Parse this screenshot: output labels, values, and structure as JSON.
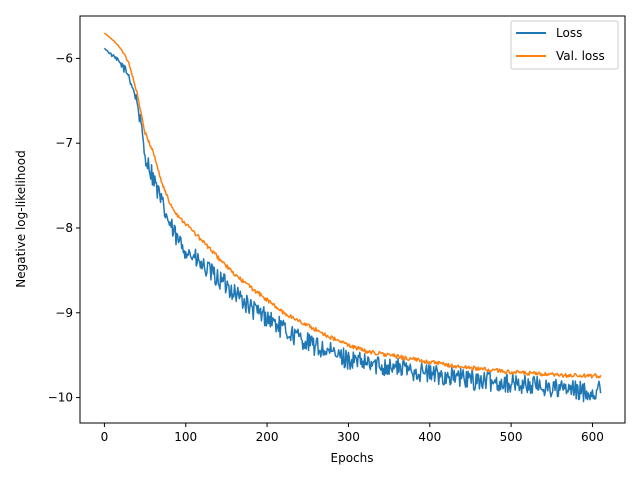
{
  "chart_data": {
    "type": "line",
    "title": "",
    "xlabel": "Epochs",
    "ylabel": "Negative log-likelihood",
    "xlim": [
      -30,
      640
    ],
    "ylim": [
      -10.3,
      -5.5
    ],
    "x_ticks": [
      0,
      100,
      200,
      300,
      400,
      500,
      600
    ],
    "x_tick_labels": [
      "0",
      "100",
      "200",
      "300",
      "400",
      "500",
      "600"
    ],
    "y_ticks": [
      -10,
      -9,
      -8,
      -7,
      -6
    ],
    "y_tick_labels": [
      "−10",
      "−9",
      "−8",
      "−7",
      "−6"
    ],
    "grid": false,
    "legend_position": "top-right",
    "series": [
      {
        "name": "Loss",
        "color": "#1f77b4",
        "x": [
          0,
          10,
          20,
          30,
          40,
          45,
          50,
          60,
          70,
          80,
          90,
          100,
          120,
          140,
          160,
          180,
          200,
          220,
          240,
          260,
          280,
          300,
          320,
          350,
          380,
          400,
          430,
          460,
          500,
          530,
          560,
          580,
          600,
          610
        ],
        "y": [
          -5.88,
          -5.97,
          -6.06,
          -6.2,
          -6.5,
          -6.8,
          -7.15,
          -7.4,
          -7.7,
          -7.95,
          -8.15,
          -8.25,
          -8.45,
          -8.6,
          -8.75,
          -8.95,
          -9.05,
          -9.2,
          -9.3,
          -9.4,
          -9.48,
          -9.55,
          -9.6,
          -9.63,
          -9.68,
          -9.72,
          -9.76,
          -9.8,
          -9.83,
          -9.86,
          -9.9,
          -9.92,
          -9.94,
          -9.9
        ],
        "noise": 0.12
      },
      {
        "name": "Val. loss",
        "color": "#ff7f0e",
        "x": [
          0,
          10,
          20,
          30,
          40,
          45,
          50,
          60,
          70,
          80,
          90,
          100,
          120,
          140,
          160,
          180,
          200,
          220,
          240,
          260,
          280,
          300,
          320,
          350,
          380,
          400,
          430,
          460,
          500,
          530,
          560,
          580,
          600,
          610
        ],
        "y": [
          -5.7,
          -5.78,
          -5.88,
          -6.05,
          -6.4,
          -6.65,
          -6.88,
          -7.1,
          -7.45,
          -7.7,
          -7.85,
          -7.95,
          -8.15,
          -8.35,
          -8.55,
          -8.7,
          -8.85,
          -9.0,
          -9.1,
          -9.2,
          -9.3,
          -9.38,
          -9.45,
          -9.5,
          -9.55,
          -9.58,
          -9.63,
          -9.66,
          -9.7,
          -9.72,
          -9.74,
          -9.74,
          -9.75,
          -9.74
        ],
        "noise": 0.025
      }
    ]
  }
}
